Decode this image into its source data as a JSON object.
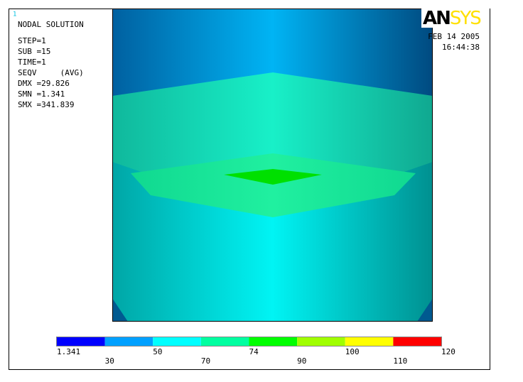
{
  "window_number": "1",
  "info": {
    "title": "NODAL SOLUTION",
    "lines": [
      "STEP=1",
      "SUB =15",
      "TIME=1",
      "SEQV     (AVG)",
      "DMX =29.826",
      "SMN =1.341",
      "SMX =341.839"
    ]
  },
  "logo": {
    "an": "AN",
    "sys": "SYS"
  },
  "date": "FEB 14 2005",
  "time": "16:44:38",
  "legend": {
    "colors": [
      "#0000ff",
      "#00a0ff",
      "#00ffff",
      "#00ffa0",
      "#00ff00",
      "#a0ff00",
      "#ffff00",
      "#ff0000"
    ],
    "labels": [
      "1.341",
      "30",
      "50",
      "70",
      "74",
      "90",
      "100",
      "110",
      "120"
    ]
  }
}
